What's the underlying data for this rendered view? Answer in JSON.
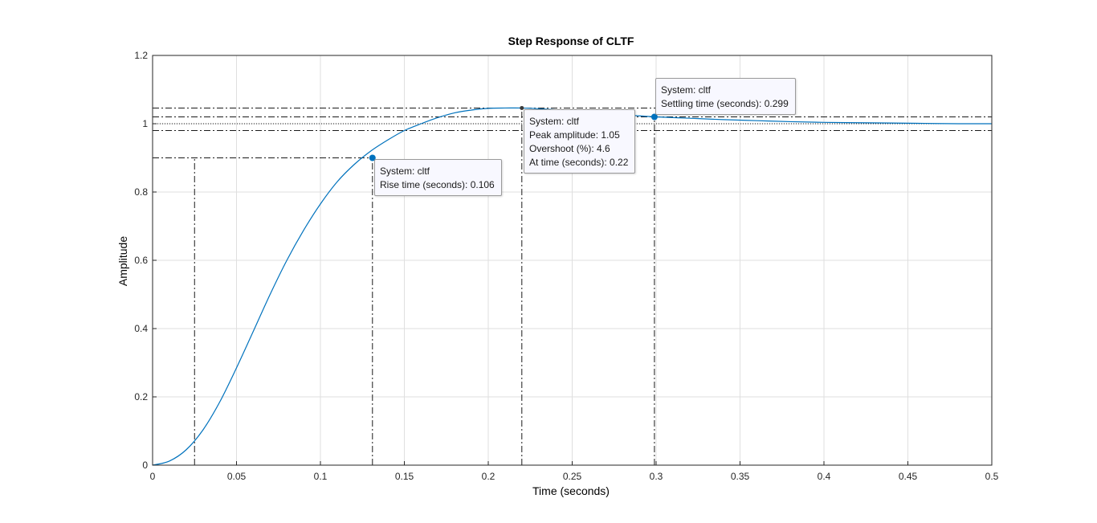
{
  "chart_data": {
    "type": "line",
    "title": "Step Response of CLTF",
    "xlabel": "Time (seconds)",
    "ylabel": "Amplitude",
    "xlim": [
      0,
      0.5
    ],
    "ylim": [
      0,
      1.2
    ],
    "xticks": [
      0,
      0.05,
      0.1,
      0.15,
      0.2,
      0.25,
      0.3,
      0.35,
      0.4,
      0.45,
      0.5
    ],
    "xtick_labels": [
      "0",
      "0.05",
      "0.1",
      "0.15",
      "0.2",
      "0.25",
      "0.3",
      "0.35",
      "0.4",
      "0.45",
      "0.5"
    ],
    "yticks": [
      0,
      0.2,
      0.4,
      0.6,
      0.8,
      1,
      1.2
    ],
    "ytick_labels": [
      "0",
      "0.2",
      "0.4",
      "0.6",
      "0.8",
      "1",
      "1.2"
    ],
    "grid": true,
    "series": [
      {
        "name": "cltf",
        "color": "#0072bd",
        "x": [
          0,
          0.01,
          0.02,
          0.03,
          0.04,
          0.05,
          0.06,
          0.07,
          0.08,
          0.09,
          0.1,
          0.11,
          0.12,
          0.13,
          0.14,
          0.15,
          0.16,
          0.17,
          0.18,
          0.19,
          0.2,
          0.21,
          0.22,
          0.23,
          0.24,
          0.25,
          0.26,
          0.27,
          0.28,
          0.29,
          0.3,
          0.32,
          0.34,
          0.36,
          0.38,
          0.4,
          0.42,
          0.44,
          0.46,
          0.48,
          0.5
        ],
        "y": [
          0,
          0.012,
          0.045,
          0.103,
          0.185,
          0.285,
          0.392,
          0.5,
          0.6,
          0.688,
          0.765,
          0.83,
          0.88,
          0.92,
          0.952,
          0.98,
          1.0,
          1.018,
          1.032,
          1.04,
          1.045,
          1.046,
          1.046,
          1.044,
          1.041,
          1.037,
          1.033,
          1.029,
          1.026,
          1.023,
          1.02,
          1.016,
          1.012,
          1.009,
          1.006,
          1.004,
          1.003,
          1.002,
          1.001,
          1.0,
          1.0
        ]
      }
    ],
    "reference_lines": {
      "steady_state": 1.0,
      "rise_start": {
        "t": 0.025,
        "y": 0.1
      },
      "rise_end": {
        "t": 0.131,
        "y": 0.9
      },
      "peak": {
        "t": 0.22,
        "y": 1.046
      },
      "settling": {
        "t": 0.299,
        "y": 1.02
      },
      "settling_band": [
        0.98,
        1.02
      ]
    },
    "datatips": [
      {
        "lines": [
          "System: cltf",
          "Rise time (seconds): 0.106"
        ]
      },
      {
        "lines": [
          "System: cltf",
          "Peak amplitude: 1.05",
          "Overshoot (%): 4.6",
          "At time (seconds): 0.22"
        ]
      },
      {
        "lines": [
          "System: cltf",
          "Settling time (seconds): 0.299"
        ]
      }
    ]
  }
}
